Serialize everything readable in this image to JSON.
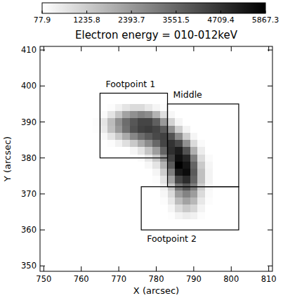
{
  "chart_data": {
    "type": "heatmap",
    "title": "Electron energy = 010-012keV",
    "x_label": "X (arcsec)",
    "y_label": "Y (arcsec)",
    "xlim": [
      749,
      811
    ],
    "ylim": [
      348.5,
      411
    ],
    "xticks": [
      750,
      760,
      770,
      780,
      790,
      800,
      810
    ],
    "yticks": [
      350,
      360,
      370,
      380,
      390,
      400,
      410
    ],
    "grid": false,
    "colorbar": {
      "range": [
        77.9,
        5867.3
      ],
      "ticks": [
        77.9,
        1235.8,
        2393.7,
        3551.5,
        4709.4,
        5867.3
      ]
    },
    "regions": [
      {
        "label": "Footpoint 1",
        "x": [
          765,
          783
        ],
        "y": [
          380,
          398
        ]
      },
      {
        "label": "Middle",
        "x": [
          783,
          802
        ],
        "y": [
          372,
          395
        ]
      },
      {
        "label": "Footpoint 2",
        "x": [
          776,
          802
        ],
        "y": [
          360,
          372
        ]
      }
    ],
    "heatmap": {
      "x": [
        764,
        766,
        768,
        770,
        772,
        774,
        776,
        778,
        780,
        782,
        784,
        786,
        788,
        790,
        792,
        794,
        796
      ],
      "y": [
        398,
        396,
        394,
        392,
        390,
        388,
        386,
        384,
        382,
        380,
        378,
        376,
        374,
        372,
        370,
        368,
        366,
        364,
        362
      ],
      "values": [
        [
          77.9,
          77.9,
          77.9,
          77.9,
          77.9,
          77.9,
          77.9,
          77.9,
          77.9,
          77.9,
          77.9,
          77.9,
          77.9,
          77.9,
          77.9,
          77.9,
          77.9
        ],
        [
          77.9,
          77.9,
          77.9,
          77.9,
          77.9,
          77.9,
          77.9,
          77.9,
          77.9,
          77.9,
          77.9,
          77.9,
          77.9,
          77.9,
          77.9,
          77.9,
          77.9
        ],
        [
          77.9,
          77.9,
          150,
          400,
          700,
          900,
          900,
          600,
          300,
          120,
          77.9,
          77.9,
          77.9,
          77.9,
          77.9,
          77.9,
          77.9
        ],
        [
          77.9,
          200,
          700,
          1400,
          2200,
          2600,
          2900,
          2700,
          1800,
          800,
          250,
          77.9,
          77.9,
          77.9,
          77.9,
          77.9,
          77.9
        ],
        [
          150,
          700,
          1600,
          2600,
          3400,
          3900,
          4300,
          4300,
          3700,
          2400,
          1100,
          300,
          77.9,
          77.9,
          77.9,
          77.9,
          77.9
        ],
        [
          120,
          600,
          1500,
          2400,
          3300,
          4000,
          4400,
          4500,
          4300,
          3800,
          2600,
          1200,
          350,
          77.9,
          77.9,
          77.9,
          77.9
        ],
        [
          77.9,
          250,
          700,
          1300,
          2000,
          2800,
          3400,
          3800,
          4200,
          4400,
          4000,
          2700,
          1200,
          300,
          77.9,
          77.9,
          77.9
        ],
        [
          77.9,
          77.9,
          150,
          400,
          800,
          1300,
          2000,
          2700,
          3500,
          4300,
          4700,
          4200,
          2600,
          900,
          200,
          77.9,
          77.9
        ],
        [
          77.9,
          77.9,
          77.9,
          77.9,
          77.9,
          300,
          700,
          1400,
          2300,
          3600,
          4800,
          5200,
          4000,
          1900,
          500,
          77.9,
          77.9
        ],
        [
          77.9,
          77.9,
          77.9,
          77.9,
          77.9,
          77.9,
          200,
          600,
          1300,
          2600,
          4400,
          5500,
          5000,
          3000,
          900,
          200,
          77.9
        ],
        [
          77.9,
          77.9,
          77.9,
          77.9,
          77.9,
          77.9,
          77.9,
          250,
          700,
          1800,
          3800,
          5867.3,
          5400,
          3600,
          1300,
          300,
          77.9
        ],
        [
          77.9,
          77.9,
          77.9,
          77.9,
          77.9,
          77.9,
          77.9,
          77.9,
          300,
          1200,
          3000,
          5300,
          5600,
          3800,
          1500,
          350,
          77.9
        ],
        [
          77.9,
          77.9,
          77.9,
          77.9,
          77.9,
          77.9,
          77.9,
          77.9,
          150,
          700,
          2200,
          4300,
          4900,
          3600,
          1500,
          350,
          77.9
        ],
        [
          77.9,
          77.9,
          77.9,
          77.9,
          77.9,
          77.9,
          77.9,
          77.9,
          77.9,
          400,
          1400,
          3200,
          3900,
          3000,
          1200,
          250,
          77.9
        ],
        [
          77.9,
          77.9,
          77.9,
          77.9,
          77.9,
          77.9,
          77.9,
          77.9,
          77.9,
          250,
          900,
          2300,
          2900,
          2300,
          900,
          200,
          77.9
        ],
        [
          77.9,
          77.9,
          77.9,
          77.9,
          77.9,
          77.9,
          77.9,
          77.9,
          77.9,
          150,
          600,
          1600,
          2200,
          1700,
          600,
          150,
          77.9
        ],
        [
          77.9,
          77.9,
          77.9,
          77.9,
          77.9,
          77.9,
          77.9,
          77.9,
          77.9,
          77.9,
          300,
          900,
          1300,
          1000,
          350,
          77.9,
          77.9
        ],
        [
          77.9,
          77.9,
          77.9,
          77.9,
          77.9,
          77.9,
          77.9,
          77.9,
          77.9,
          77.9,
          120,
          350,
          500,
          400,
          150,
          77.9,
          77.9
        ],
        [
          77.9,
          77.9,
          77.9,
          77.9,
          77.9,
          77.9,
          77.9,
          77.9,
          77.9,
          77.9,
          77.9,
          77.9,
          77.9,
          77.9,
          77.9,
          77.9,
          77.9
        ]
      ]
    }
  }
}
